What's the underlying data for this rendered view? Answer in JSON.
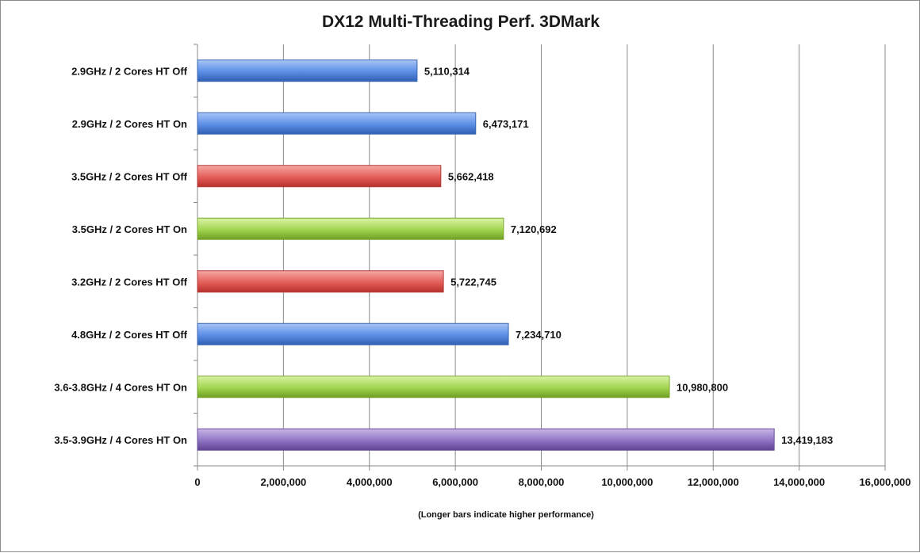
{
  "chart_data": {
    "type": "bar",
    "orientation": "horizontal",
    "title": "DX12 Multi-Threading Perf. 3DMark",
    "xlabel": "(Longer bars indicate higher performance)",
    "ylabel": "",
    "xlim": [
      0,
      16000000
    ],
    "tick_values": [
      0,
      2000000,
      4000000,
      6000000,
      8000000,
      10000000,
      12000000,
      14000000,
      16000000
    ],
    "tick_labels": [
      "0",
      "2,000,000",
      "4,000,000",
      "6,000,000",
      "8,000,000",
      "10,000,000",
      "12,000,000",
      "14,000,000",
      "16,000,000"
    ],
    "grid": true,
    "legend": "none",
    "categories": [
      "2.9GHz / 2 Cores HT Off",
      "2.9GHz / 2 Cores HT On",
      "3.5GHz / 2 Cores HT Off",
      "3.5GHz / 2 Cores HT On",
      "3.2GHz / 2 Cores HT Off",
      "4.8GHz / 2 Cores HT Off",
      "3.6-3.8GHz / 4 Cores HT On",
      "3.5-3.9GHz / 4 Cores HT On"
    ],
    "values": [
      5110314,
      6473171,
      5662418,
      7120692,
      5722745,
      7234710,
      10980800,
      13419183
    ],
    "value_labels": [
      "5,110,314",
      "6,473,171",
      "5,662,418",
      "7,120,692",
      "5,722,745",
      "7,234,710",
      "10,980,800",
      "13,419,183"
    ],
    "bar_colors": [
      "blue",
      "blue",
      "red",
      "green",
      "red",
      "blue",
      "green",
      "purple"
    ],
    "palette": {
      "blue": {
        "light": "#a9c6f7",
        "mid": "#5b8ee6",
        "dark": "#2f5fb3",
        "stroke": "#3a66b0"
      },
      "red": {
        "light": "#f6a9a6",
        "mid": "#e35d58",
        "dark": "#b8302b",
        "stroke": "#b23a36"
      },
      "green": {
        "light": "#d9f2a6",
        "mid": "#a2d54f",
        "dark": "#6e9f24",
        "stroke": "#7aa62f"
      },
      "purple": {
        "light": "#c9b6e6",
        "mid": "#9074c4",
        "dark": "#5e4391",
        "stroke": "#6a4f9c"
      }
    }
  }
}
